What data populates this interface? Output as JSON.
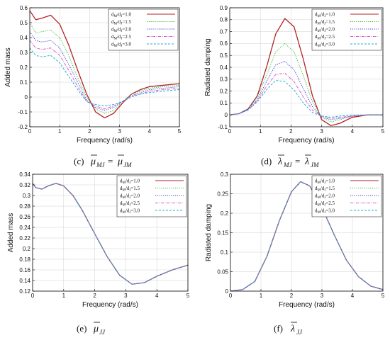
{
  "figure": {
    "legend_labels": [
      "d_M/d_J=1.0",
      "d_M/d_J=1.5",
      "d_M/d_J=2.0",
      "d_M/d_J=2.5",
      "d_M/d_J=3.0"
    ],
    "legend_ratios": [
      "1.0",
      "1.5",
      "2.0",
      "2.5",
      "3.0"
    ],
    "series_colors": [
      "#b22222",
      "#3cb83c",
      "#3b3bd6",
      "#d45ad4",
      "#1fb2c8"
    ],
    "series_styles": [
      "solid",
      "dotted",
      "dotted",
      "dashdot",
      "dashed"
    ]
  },
  "chart_data": [
    {
      "id": "c",
      "type": "line",
      "caption_label": "(c)",
      "caption_left": "μ",
      "caption_left_sub": "MJ",
      "caption_eq": "=",
      "caption_right": "μ",
      "caption_right_sub": "JM",
      "xlabel": "Frequency (rad/s)",
      "ylabel": "Added mass",
      "xlim": [
        0,
        5
      ],
      "ylim": [
        -0.2,
        0.6
      ],
      "xticks": [
        0,
        1,
        2,
        3,
        4,
        5
      ],
      "yticks": [
        -0.2,
        -0.1,
        0,
        0.1,
        0.2,
        0.3,
        0.4,
        0.5,
        0.6
      ],
      "ytick_labels": [
        "-0.2",
        "-0.1",
        "0",
        "0.1",
        "0.2",
        "0.3",
        "0.4",
        "0.5",
        "0.6"
      ],
      "grid": true,
      "legend": "top-right",
      "series": [
        {
          "name": "d_M/d_J=1.0",
          "x": [
            0,
            0.2,
            0.4,
            0.7,
            1.0,
            1.3,
            1.6,
            1.9,
            2.2,
            2.5,
            2.8,
            3.1,
            3.4,
            3.7,
            4.0,
            4.5,
            5.0
          ],
          "y": [
            0.58,
            0.52,
            0.53,
            0.55,
            0.49,
            0.35,
            0.18,
            0.02,
            -0.1,
            -0.14,
            -0.11,
            -0.04,
            0.02,
            0.05,
            0.07,
            0.08,
            0.09
          ]
        },
        {
          "name": "d_M/d_J=1.5",
          "x": [
            0,
            0.2,
            0.4,
            0.7,
            1.0,
            1.3,
            1.6,
            1.9,
            2.2,
            2.5,
            2.8,
            3.1,
            3.4,
            3.7,
            4.0,
            4.5,
            5.0
          ],
          "y": [
            0.5,
            0.43,
            0.44,
            0.45,
            0.4,
            0.28,
            0.13,
            0.0,
            -0.08,
            -0.11,
            -0.09,
            -0.03,
            0.02,
            0.04,
            0.06,
            0.07,
            0.08
          ]
        },
        {
          "name": "d_M/d_J=2.0",
          "x": [
            0,
            0.2,
            0.4,
            0.7,
            1.0,
            1.3,
            1.6,
            1.9,
            2.2,
            2.5,
            2.8,
            3.1,
            3.4,
            3.7,
            4.0,
            4.5,
            5.0
          ],
          "y": [
            0.44,
            0.38,
            0.37,
            0.38,
            0.33,
            0.22,
            0.1,
            -0.02,
            -0.07,
            -0.09,
            -0.07,
            -0.03,
            0.01,
            0.03,
            0.05,
            0.06,
            0.07
          ]
        },
        {
          "name": "d_M/d_J=2.5",
          "x": [
            0,
            0.2,
            0.4,
            0.7,
            1.0,
            1.3,
            1.6,
            1.9,
            2.2,
            2.5,
            2.8,
            3.1,
            3.4,
            3.7,
            4.0,
            4.5,
            5.0
          ],
          "y": [
            0.38,
            0.33,
            0.32,
            0.33,
            0.28,
            0.18,
            0.07,
            -0.03,
            -0.06,
            -0.08,
            -0.06,
            -0.03,
            0.01,
            0.02,
            0.04,
            0.05,
            0.06
          ]
        },
        {
          "name": "d_M/d_J=3.0",
          "x": [
            0,
            0.2,
            0.4,
            0.7,
            1.0,
            1.3,
            1.6,
            1.9,
            2.2,
            2.5,
            2.8,
            3.1,
            3.4,
            3.7,
            4.0,
            4.5,
            5.0
          ],
          "y": [
            0.33,
            0.28,
            0.27,
            0.28,
            0.23,
            0.14,
            0.05,
            -0.03,
            -0.05,
            -0.06,
            -0.05,
            -0.03,
            0.0,
            0.02,
            0.03,
            0.04,
            0.05
          ]
        }
      ]
    },
    {
      "id": "d",
      "type": "line",
      "caption_label": "(d)",
      "caption_left": "λ",
      "caption_left_sub": "MJ",
      "caption_eq": "=",
      "caption_right": "λ",
      "caption_right_sub": "JM",
      "xlabel": "Frequency (rad/s)",
      "ylabel": "Radiated damping",
      "xlim": [
        0,
        5
      ],
      "ylim": [
        -0.1,
        0.9
      ],
      "xticks": [
        0,
        1,
        2,
        3,
        4,
        5
      ],
      "yticks": [
        -0.1,
        0,
        0.1,
        0.2,
        0.3,
        0.4,
        0.5,
        0.6,
        0.7,
        0.8,
        0.9
      ],
      "ytick_labels": [
        "-0.1",
        "0",
        "0.1",
        "0.2",
        "0.3",
        "0.4",
        "0.5",
        "0.6",
        "0.7",
        "0.8",
        "0.9"
      ],
      "grid": true,
      "legend": "top-right",
      "series": [
        {
          "name": "d_M/d_J=1.0",
          "x": [
            0,
            0.3,
            0.6,
            0.9,
            1.2,
            1.5,
            1.8,
            2.1,
            2.4,
            2.7,
            3.0,
            3.3,
            3.6,
            4.0,
            4.5,
            5.0
          ],
          "y": [
            0,
            0.01,
            0.05,
            0.16,
            0.4,
            0.68,
            0.81,
            0.74,
            0.47,
            0.16,
            -0.04,
            -0.09,
            -0.07,
            -0.02,
            0,
            0
          ]
        },
        {
          "name": "d_M/d_J=1.5",
          "x": [
            0,
            0.3,
            0.6,
            0.9,
            1.2,
            1.5,
            1.8,
            2.1,
            2.4,
            2.7,
            3.0,
            3.3,
            3.6,
            4.0,
            4.5,
            5.0
          ],
          "y": [
            0,
            0.01,
            0.05,
            0.15,
            0.33,
            0.53,
            0.6,
            0.53,
            0.33,
            0.11,
            -0.02,
            -0.06,
            -0.04,
            -0.01,
            0,
            0
          ]
        },
        {
          "name": "d_M/d_J=2.0",
          "x": [
            0,
            0.3,
            0.6,
            0.9,
            1.2,
            1.5,
            1.8,
            2.1,
            2.4,
            2.7,
            3.0,
            3.3,
            3.6,
            4.0,
            4.5,
            5.0
          ],
          "y": [
            0,
            0.01,
            0.05,
            0.13,
            0.28,
            0.42,
            0.45,
            0.38,
            0.22,
            0.07,
            -0.02,
            -0.04,
            -0.03,
            -0.01,
            0,
            0
          ]
        },
        {
          "name": "d_M/d_J=2.5",
          "x": [
            0,
            0.3,
            0.6,
            0.9,
            1.2,
            1.5,
            1.8,
            2.1,
            2.4,
            2.7,
            3.0,
            3.3,
            3.6,
            4.0,
            4.5,
            5.0
          ],
          "y": [
            0,
            0.01,
            0.04,
            0.12,
            0.24,
            0.34,
            0.35,
            0.28,
            0.15,
            0.04,
            -0.01,
            -0.03,
            -0.02,
            -0.01,
            0,
            0
          ]
        },
        {
          "name": "d_M/d_J=3.0",
          "x": [
            0,
            0.3,
            0.6,
            0.9,
            1.2,
            1.5,
            1.8,
            2.1,
            2.4,
            2.7,
            3.0,
            3.3,
            3.6,
            4.0,
            4.5,
            5.0
          ],
          "y": [
            0,
            0.01,
            0.04,
            0.11,
            0.21,
            0.29,
            0.28,
            0.21,
            0.1,
            0.02,
            -0.01,
            -0.02,
            -0.01,
            0,
            0,
            0
          ]
        }
      ]
    },
    {
      "id": "e",
      "type": "line",
      "caption_label": "(e)",
      "caption_left": "μ",
      "caption_left_sub": "JJ",
      "caption_eq": "",
      "caption_right": "",
      "caption_right_sub": "",
      "xlabel": "Frequency (rad/s)",
      "ylabel": "Added mass",
      "xlim": [
        0,
        5
      ],
      "ylim": [
        0.12,
        0.34
      ],
      "xticks": [
        0,
        1,
        2,
        3,
        4,
        5
      ],
      "yticks": [
        0.12,
        0.14,
        0.16,
        0.18,
        0.2,
        0.22,
        0.24,
        0.26,
        0.28,
        0.3,
        0.32,
        0.34
      ],
      "ytick_labels": [
        "0.12",
        "0.14",
        "0.16",
        "0.18",
        "0.2",
        "0.22",
        "0.24",
        "0.26",
        "0.28",
        "0.3",
        "0.32",
        "0.34"
      ],
      "grid": true,
      "legend": "top-right",
      "series": [
        {
          "name": "d_M/d_J=1.0",
          "x": [
            0,
            0.1,
            0.3,
            0.5,
            0.75,
            1.0,
            1.3,
            1.6,
            2.0,
            2.4,
            2.8,
            3.2,
            3.6,
            4.0,
            4.5,
            5.0
          ],
          "y": [
            0.323,
            0.315,
            0.312,
            0.318,
            0.323,
            0.318,
            0.3,
            0.272,
            0.228,
            0.185,
            0.15,
            0.133,
            0.136,
            0.148,
            0.16,
            0.169
          ]
        },
        {
          "name": "d_M/d_J=1.5",
          "x": [
            0,
            0.1,
            0.3,
            0.5,
            0.75,
            1.0,
            1.3,
            1.6,
            2.0,
            2.4,
            2.8,
            3.2,
            3.6,
            4.0,
            4.5,
            5.0
          ],
          "y": [
            0.323,
            0.315,
            0.312,
            0.318,
            0.323,
            0.318,
            0.3,
            0.272,
            0.228,
            0.185,
            0.15,
            0.133,
            0.136,
            0.148,
            0.16,
            0.169
          ]
        },
        {
          "name": "d_M/d_J=2.0",
          "x": [
            0,
            0.1,
            0.3,
            0.5,
            0.75,
            1.0,
            1.3,
            1.6,
            2.0,
            2.4,
            2.8,
            3.2,
            3.6,
            4.0,
            4.5,
            5.0
          ],
          "y": [
            0.323,
            0.315,
            0.312,
            0.318,
            0.323,
            0.318,
            0.3,
            0.272,
            0.228,
            0.185,
            0.15,
            0.133,
            0.136,
            0.148,
            0.16,
            0.169
          ]
        },
        {
          "name": "d_M/d_J=2.5",
          "x": [
            0,
            0.1,
            0.3,
            0.5,
            0.75,
            1.0,
            1.3,
            1.6,
            2.0,
            2.4,
            2.8,
            3.2,
            3.6,
            4.0,
            4.5,
            5.0
          ],
          "y": [
            0.323,
            0.315,
            0.312,
            0.318,
            0.323,
            0.318,
            0.3,
            0.272,
            0.228,
            0.185,
            0.15,
            0.133,
            0.136,
            0.148,
            0.16,
            0.169
          ]
        },
        {
          "name": "d_M/d_J=3.0",
          "x": [
            0,
            0.1,
            0.3,
            0.5,
            0.75,
            1.0,
            1.3,
            1.6,
            2.0,
            2.4,
            2.8,
            3.2,
            3.6,
            4.0,
            4.5,
            5.0
          ],
          "y": [
            0.323,
            0.315,
            0.312,
            0.318,
            0.323,
            0.318,
            0.3,
            0.272,
            0.228,
            0.185,
            0.15,
            0.133,
            0.136,
            0.148,
            0.16,
            0.169
          ]
        }
      ]
    },
    {
      "id": "f",
      "type": "line",
      "caption_label": "(f)",
      "caption_left": "λ",
      "caption_left_sub": "JJ",
      "caption_eq": "",
      "caption_right": "",
      "caption_right_sub": "",
      "xlabel": "Frequency (rad/s)",
      "ylabel": "Radiated damping",
      "xlim": [
        0,
        5
      ],
      "ylim": [
        0,
        0.3
      ],
      "xticks": [
        0,
        1,
        2,
        3,
        4,
        5
      ],
      "yticks": [
        0,
        0.05,
        0.1,
        0.15,
        0.2,
        0.25,
        0.3
      ],
      "ytick_labels": [
        "0",
        "0.05",
        "0.1",
        "0.15",
        "0.2",
        "0.25",
        "0.3"
      ],
      "grid": true,
      "legend": "top-right",
      "series": [
        {
          "name": "d_M/d_J=1.0",
          "x": [
            0,
            0.4,
            0.8,
            1.2,
            1.6,
            2.0,
            2.3,
            2.6,
            3.0,
            3.4,
            3.8,
            4.2,
            4.6,
            5.0
          ],
          "y": [
            0,
            0.004,
            0.025,
            0.09,
            0.18,
            0.255,
            0.281,
            0.27,
            0.215,
            0.145,
            0.08,
            0.037,
            0.013,
            0.004
          ]
        },
        {
          "name": "d_M/d_J=1.5",
          "x": [
            0,
            0.4,
            0.8,
            1.2,
            1.6,
            2.0,
            2.3,
            2.6,
            3.0,
            3.4,
            3.8,
            4.2,
            4.6,
            5.0
          ],
          "y": [
            0,
            0.004,
            0.025,
            0.09,
            0.18,
            0.255,
            0.281,
            0.27,
            0.215,
            0.145,
            0.08,
            0.037,
            0.013,
            0.004
          ]
        },
        {
          "name": "d_M/d_J=2.0",
          "x": [
            0,
            0.4,
            0.8,
            1.2,
            1.6,
            2.0,
            2.3,
            2.6,
            3.0,
            3.4,
            3.8,
            4.2,
            4.6,
            5.0
          ],
          "y": [
            0,
            0.004,
            0.025,
            0.09,
            0.18,
            0.255,
            0.281,
            0.27,
            0.215,
            0.145,
            0.08,
            0.037,
            0.013,
            0.004
          ]
        },
        {
          "name": "d_M/d_J=2.5",
          "x": [
            0,
            0.4,
            0.8,
            1.2,
            1.6,
            2.0,
            2.3,
            2.6,
            3.0,
            3.4,
            3.8,
            4.2,
            4.6,
            5.0
          ],
          "y": [
            0,
            0.004,
            0.025,
            0.09,
            0.18,
            0.255,
            0.281,
            0.27,
            0.215,
            0.145,
            0.08,
            0.037,
            0.013,
            0.004
          ]
        },
        {
          "name": "d_M/d_J=3.0",
          "x": [
            0,
            0.4,
            0.8,
            1.2,
            1.6,
            2.0,
            2.3,
            2.6,
            3.0,
            3.4,
            3.8,
            4.2,
            4.6,
            5.0
          ],
          "y": [
            0,
            0.004,
            0.025,
            0.09,
            0.18,
            0.255,
            0.281,
            0.27,
            0.215,
            0.145,
            0.08,
            0.037,
            0.013,
            0.004
          ]
        }
      ]
    }
  ]
}
